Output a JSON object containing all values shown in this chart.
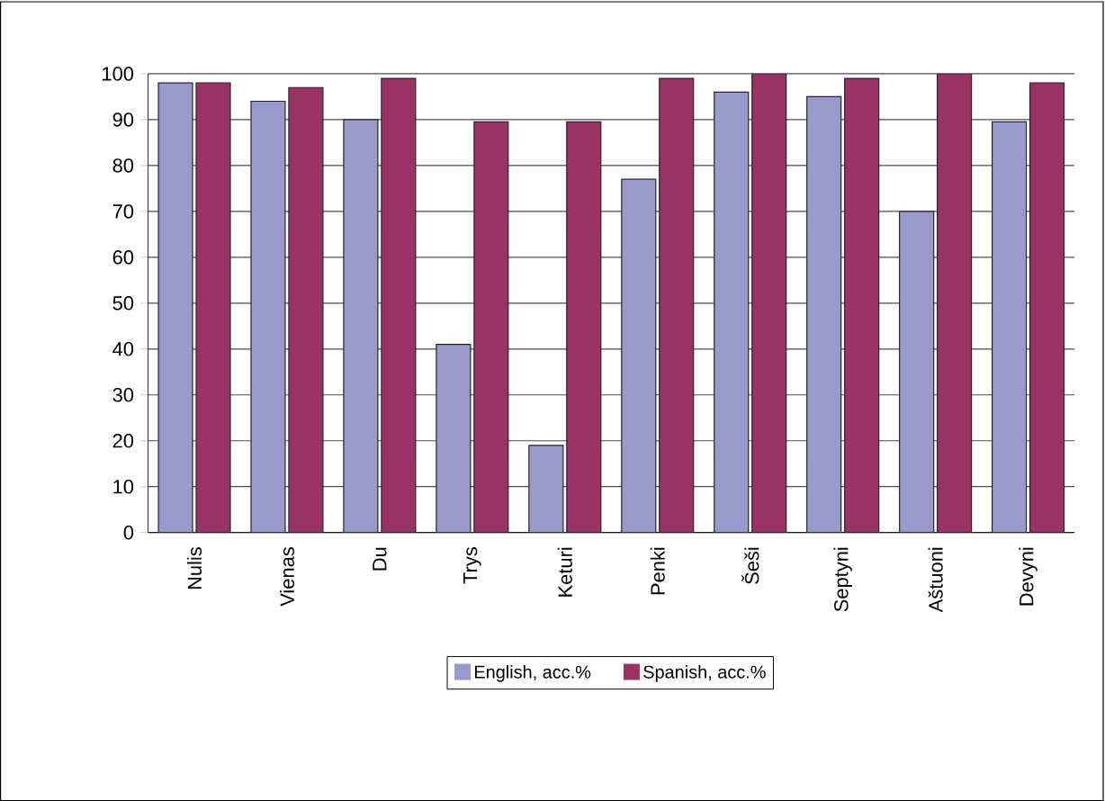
{
  "chart_data": {
    "type": "bar",
    "categories": [
      "Nulis",
      "Vienas",
      "Du",
      "Trys",
      "Keturi",
      "Penki",
      "Šeši",
      "Septyni",
      "Aštuoni",
      "Devyni"
    ],
    "series": [
      {
        "name": "English, acc.%",
        "color": "#9999cc",
        "values": [
          98,
          94,
          90,
          41,
          19,
          77,
          96,
          95,
          70,
          89.5
        ]
      },
      {
        "name": "Spanish, acc.%",
        "color": "#993366",
        "values": [
          98,
          97,
          99,
          89.5,
          89.5,
          99,
          100,
          99,
          100,
          98
        ]
      }
    ],
    "ylim": [
      0,
      100
    ],
    "yticks": [
      0,
      10,
      20,
      30,
      40,
      50,
      60,
      70,
      80,
      90,
      100
    ],
    "grid": "y",
    "legend": "bottom"
  }
}
